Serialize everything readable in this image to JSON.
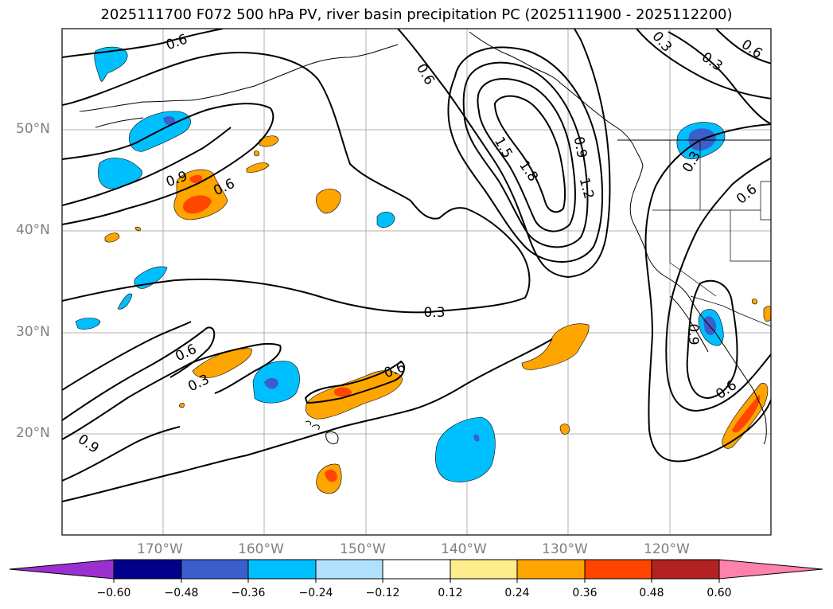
{
  "title": "2025111700 F072 500 hPa PV, river basin precipitation PC (2025111900 - 2025112200)",
  "map": {
    "lat_ticks": [
      "50°N",
      "40°N",
      "30°N",
      "20°N"
    ],
    "lon_ticks": [
      "170°W",
      "160°W",
      "150°W",
      "140°W",
      "130°W",
      "120°W"
    ],
    "extent": {
      "lon_min": -180,
      "lon_max": -110,
      "lat_min": 10,
      "lat_max": 60
    },
    "gridlines": true,
    "contour_labels": [
      "0.6",
      "0.6",
      "0.6",
      "0.6",
      "0.6",
      "0.6",
      "0.6",
      "0.9",
      "0.9",
      "0.9",
      "0.9",
      "1.2",
      "1.5",
      "1.8",
      "0.3",
      "0.3",
      "0.3",
      "0.3",
      "0.3",
      "0.6"
    ]
  },
  "colorbar": {
    "ticks": [
      "−0.60",
      "−0.48",
      "−0.36",
      "−0.24",
      "−0.12",
      "0.12",
      "0.24",
      "0.36",
      "0.48",
      "0.60"
    ],
    "colors": [
      "#9b30d0",
      "#00008b",
      "#3a5fcd",
      "#00bfff",
      "#b0e2ff",
      "#ffffff",
      "#ffec8b",
      "#ffa500",
      "#ff4500",
      "#b22222",
      "#ff82ab"
    ],
    "extend": "both"
  }
}
